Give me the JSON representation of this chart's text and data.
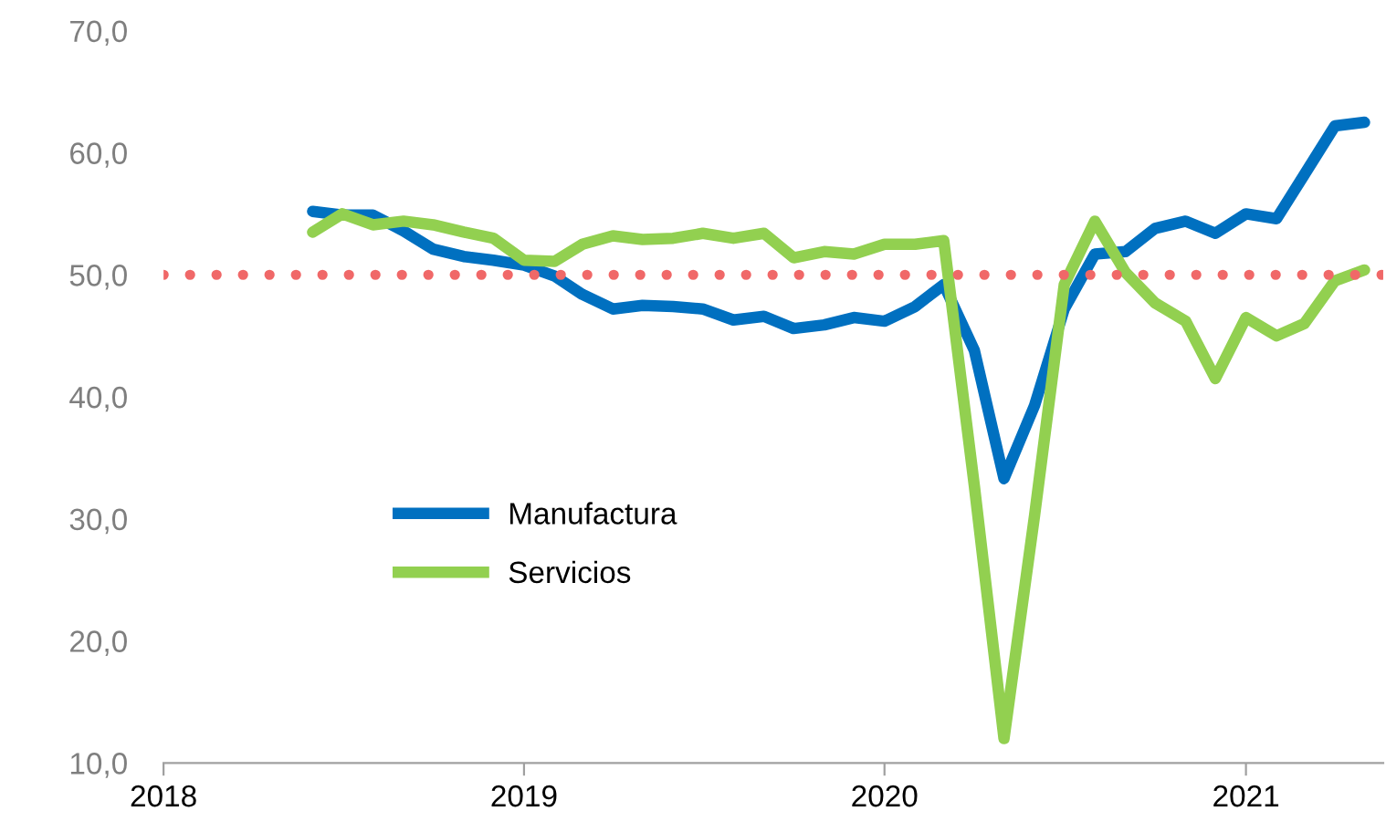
{
  "chart_data": {
    "type": "line",
    "x": [
      "2018-06",
      "2018-07",
      "2018-08",
      "2018-09",
      "2018-10",
      "2018-11",
      "2018-12",
      "2019-01",
      "2019-02",
      "2019-03",
      "2019-04",
      "2019-05",
      "2019-06",
      "2019-07",
      "2019-08",
      "2019-09",
      "2019-10",
      "2019-11",
      "2019-12",
      "2020-01",
      "2020-02",
      "2020-03",
      "2020-04",
      "2020-05",
      "2020-06",
      "2020-07",
      "2020-08",
      "2020-09",
      "2020-10",
      "2020-11",
      "2020-12",
      "2021-01",
      "2021-02",
      "2021-03",
      "2021-04",
      "2021-05"
    ],
    "series": [
      {
        "name": "Manufactura",
        "color": "#0070c0",
        "values": [
          55.2,
          54.9,
          54.9,
          53.6,
          52.1,
          51.5,
          51.2,
          50.8,
          49.9,
          48.4,
          47.2,
          47.5,
          47.4,
          47.2,
          46.3,
          46.6,
          45.6,
          45.9,
          46.5,
          46.2,
          47.4,
          49.2,
          43.8,
          33.3,
          39.3,
          47.2,
          51.7,
          51.9,
          53.8,
          54.4,
          53.4,
          55.0,
          54.6,
          58.2,
          62.2,
          62.5
        ]
      },
      {
        "name": "Servicios",
        "color": "#92d050",
        "values": [
          53.5,
          55.0,
          54.1,
          54.4,
          54.1,
          53.5,
          53.0,
          51.2,
          51.1,
          52.5,
          53.2,
          52.9,
          53.0,
          53.4,
          53.0,
          53.4,
          51.4,
          51.9,
          51.7,
          52.5,
          52.5,
          52.8,
          32.7,
          12.0,
          30.3,
          49.2,
          54.4,
          50.2,
          47.7,
          46.2,
          41.5,
          46.5,
          45.0,
          46.0,
          49.5,
          50.4
        ]
      }
    ],
    "xlim": [
      "2018-01-01",
      "2021-05-20"
    ],
    "xticks": [
      {
        "value": "2018-01-01",
        "label": "2018"
      },
      {
        "value": "2019-01-01",
        "label": "2019"
      },
      {
        "value": "2020-01-01",
        "label": "2020"
      },
      {
        "value": "2021-01-01",
        "label": "2021"
      }
    ],
    "ylim": [
      10,
      70
    ],
    "yticks": [
      {
        "value": 10,
        "label": "10,0"
      },
      {
        "value": 20,
        "label": "20,0"
      },
      {
        "value": 30,
        "label": "30,0"
      },
      {
        "value": 40,
        "label": "40,0"
      },
      {
        "value": 50,
        "label": "50,0"
      },
      {
        "value": 60,
        "label": "60,0"
      },
      {
        "value": 70,
        "label": "70,0"
      }
    ],
    "ref_lines": [
      {
        "axis": "y",
        "value": 50,
        "color": "#f06868",
        "line_style": "dotted"
      }
    ],
    "legend": "bottom left",
    "grid": false,
    "line_style": "solid"
  }
}
